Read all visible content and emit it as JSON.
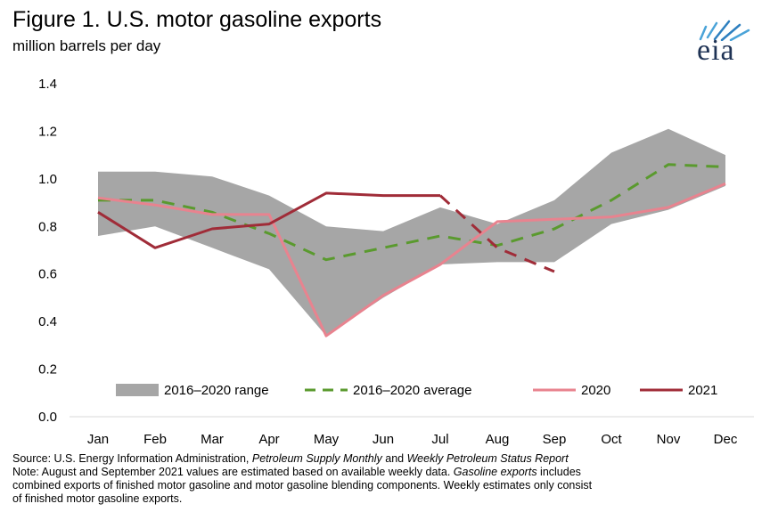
{
  "chart_data": {
    "type": "line",
    "title": "Figure 1. U.S. motor gasoline exports",
    "ylabel": "million barrels per day",
    "xlabel": "",
    "ylim": [
      0,
      1.4
    ],
    "yticks": [
      "0.0",
      "0.2",
      "0.4",
      "0.6",
      "0.8",
      "1.0",
      "1.2",
      "1.4"
    ],
    "categories": [
      "Jan",
      "Feb",
      "Mar",
      "Apr",
      "May",
      "Jun",
      "Jul",
      "Aug",
      "Sep",
      "Oct",
      "Nov",
      "Dec"
    ],
    "range": {
      "name": "2016–2020 range",
      "color": "#a6a6a6",
      "low": [
        0.76,
        0.8,
        0.71,
        0.62,
        0.34,
        0.5,
        0.64,
        0.65,
        0.65,
        0.81,
        0.87,
        0.97
      ],
      "high": [
        1.03,
        1.03,
        1.01,
        0.93,
        0.8,
        0.78,
        0.88,
        0.81,
        0.91,
        1.11,
        1.21,
        1.1
      ]
    },
    "series": [
      {
        "name": "2016–2020 average",
        "color": "#5a9a2e",
        "dash": true,
        "values": [
          0.91,
          0.91,
          0.86,
          0.77,
          0.66,
          0.71,
          0.76,
          0.72,
          0.79,
          0.91,
          1.06,
          1.05
        ]
      },
      {
        "name": "2020",
        "color": "#e8838f",
        "dash": false,
        "values": [
          0.92,
          0.89,
          0.85,
          0.85,
          0.34,
          0.51,
          0.64,
          0.82,
          0.83,
          0.84,
          0.88,
          0.98
        ]
      },
      {
        "name": "2021",
        "color": "#a02c38",
        "dash": false,
        "values": [
          0.86,
          0.71,
          0.79,
          0.81,
          0.94,
          0.93,
          0.93,
          null,
          null,
          null,
          null,
          null
        ],
        "estimated": [
          null,
          null,
          null,
          null,
          null,
          null,
          0.93,
          0.71,
          0.61,
          null,
          null,
          null
        ]
      }
    ],
    "legend_position": "bottom-inside"
  },
  "logo": {
    "text": "eia",
    "color": "#1f3355"
  },
  "notes": {
    "line1_a": "Source: U.S. Energy Information Administration, ",
    "line1_b": "Petroleum Supply Monthly",
    "line1_c": " and ",
    "line1_d": "Weekly Petroleum Status Report",
    "line2_a": "Note: August and September 2021 values are estimated  based on available weekly data. ",
    "line2_b": "Gasoline exports",
    "line2_c": " includes",
    "line3": "combined exports of finished motor gasoline and motor gasoline blending  components. Weekly estimates only consist",
    "line4": "of finished motor gasoline exports."
  }
}
